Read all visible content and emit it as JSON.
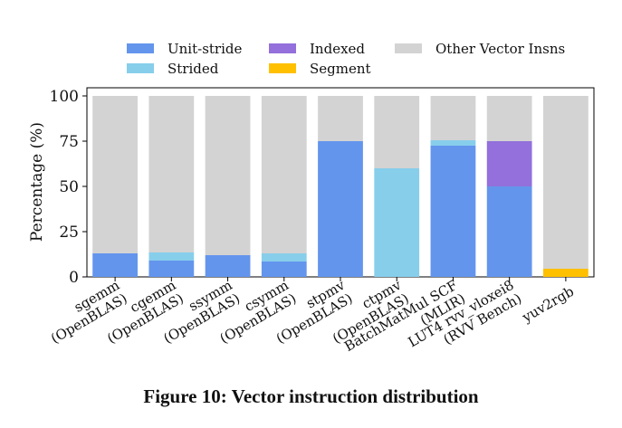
{
  "chart_data": {
    "type": "bar",
    "stacked": true,
    "title": "",
    "xlabel": "",
    "ylabel": "Percentage (%)",
    "ylim": [
      0,
      100
    ],
    "yticks": [
      0,
      25,
      50,
      75,
      100
    ],
    "legend_position": "top",
    "categories": [
      "sgemm\n(OpenBLAS)",
      "cgemm\n(OpenBLAS)",
      "ssymm\n(OpenBLAS)",
      "csymm\n(OpenBLAS)",
      "stpmv\n(OpenBLAS)",
      "ctpmv\n(OpenBLAS)",
      "BatchMatMul SCF\n(MLIR)",
      "LUT4 rvv_vloxei8\n(RVV Bench)",
      "yuv2rgb"
    ],
    "series": [
      {
        "name": "Unit-stride",
        "color": "#6495ED",
        "values": [
          13,
          9,
          12,
          8.5,
          75,
          0,
          72.5,
          50,
          0
        ]
      },
      {
        "name": "Strided",
        "color": "#87CEEB",
        "values": [
          0,
          4.5,
          0,
          4.5,
          0,
          60,
          3,
          0,
          0
        ]
      },
      {
        "name": "Indexed",
        "color": "#9370DB",
        "values": [
          0,
          0,
          0,
          0,
          0,
          0,
          0,
          25,
          0
        ]
      },
      {
        "name": "Segment",
        "color": "#FFC000",
        "values": [
          0,
          0,
          0,
          0,
          0,
          0,
          0,
          0,
          4.5
        ]
      },
      {
        "name": "Other Vector Insns",
        "color": "#D3D3D3",
        "values": [
          87,
          86.5,
          88,
          87,
          25,
          40,
          24.5,
          25,
          95.5
        ]
      }
    ]
  },
  "caption": "Figure 10: Vector instruction distribution"
}
